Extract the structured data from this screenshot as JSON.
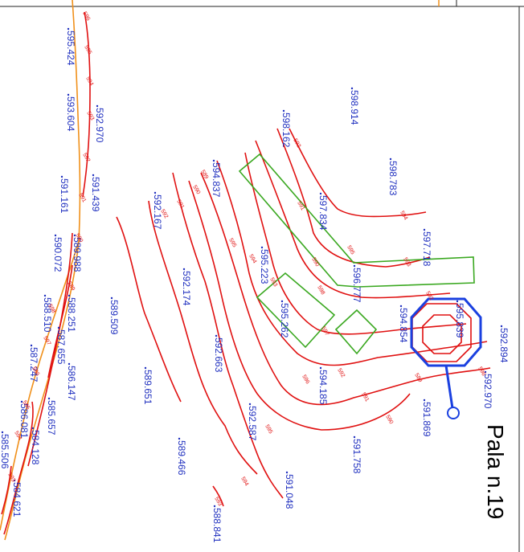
{
  "title": "Pala n.19",
  "colors": {
    "contour": "#e01010",
    "spot_label": "#1f2fbf",
    "boundary": "#f0901a",
    "area": "#3aa820",
    "pala": "#1a40e0"
  },
  "spot_heights": [
    "595.424",
    "593.604",
    "592.970",
    "591.439",
    "591.161",
    "590.072",
    "589.988",
    "588.510",
    "588.251",
    "587.655",
    "586.147",
    "587.247",
    "585.657",
    "586.081",
    "584.128",
    "585.506",
    "584.621",
    "589.509",
    "589.651",
    "589.466",
    "588.841",
    "592.167",
    "592.174",
    "592.663",
    "592.587",
    "591.048",
    "594.837",
    "595.223",
    "595.262",
    "594.185",
    "598.162",
    "597.834",
    "596.777",
    "594.854",
    "591.869",
    "591.758",
    "598.914",
    "598.783",
    "597.718",
    "595.839",
    "592.970",
    "592.894"
  ],
  "contour_labels": [
    "596",
    "595",
    "594",
    "593",
    "592",
    "591",
    "590",
    "589",
    "598",
    "597",
    "596",
    "595",
    "594",
    "593",
    "592",
    "591",
    "590",
    "598",
    "597",
    "596",
    "595",
    "594",
    "593",
    "592",
    "591",
    "590",
    "589",
    "595",
    "594",
    "593",
    "592",
    "591",
    "590",
    "589",
    "596",
    "595",
    "594",
    "593",
    "592"
  ]
}
